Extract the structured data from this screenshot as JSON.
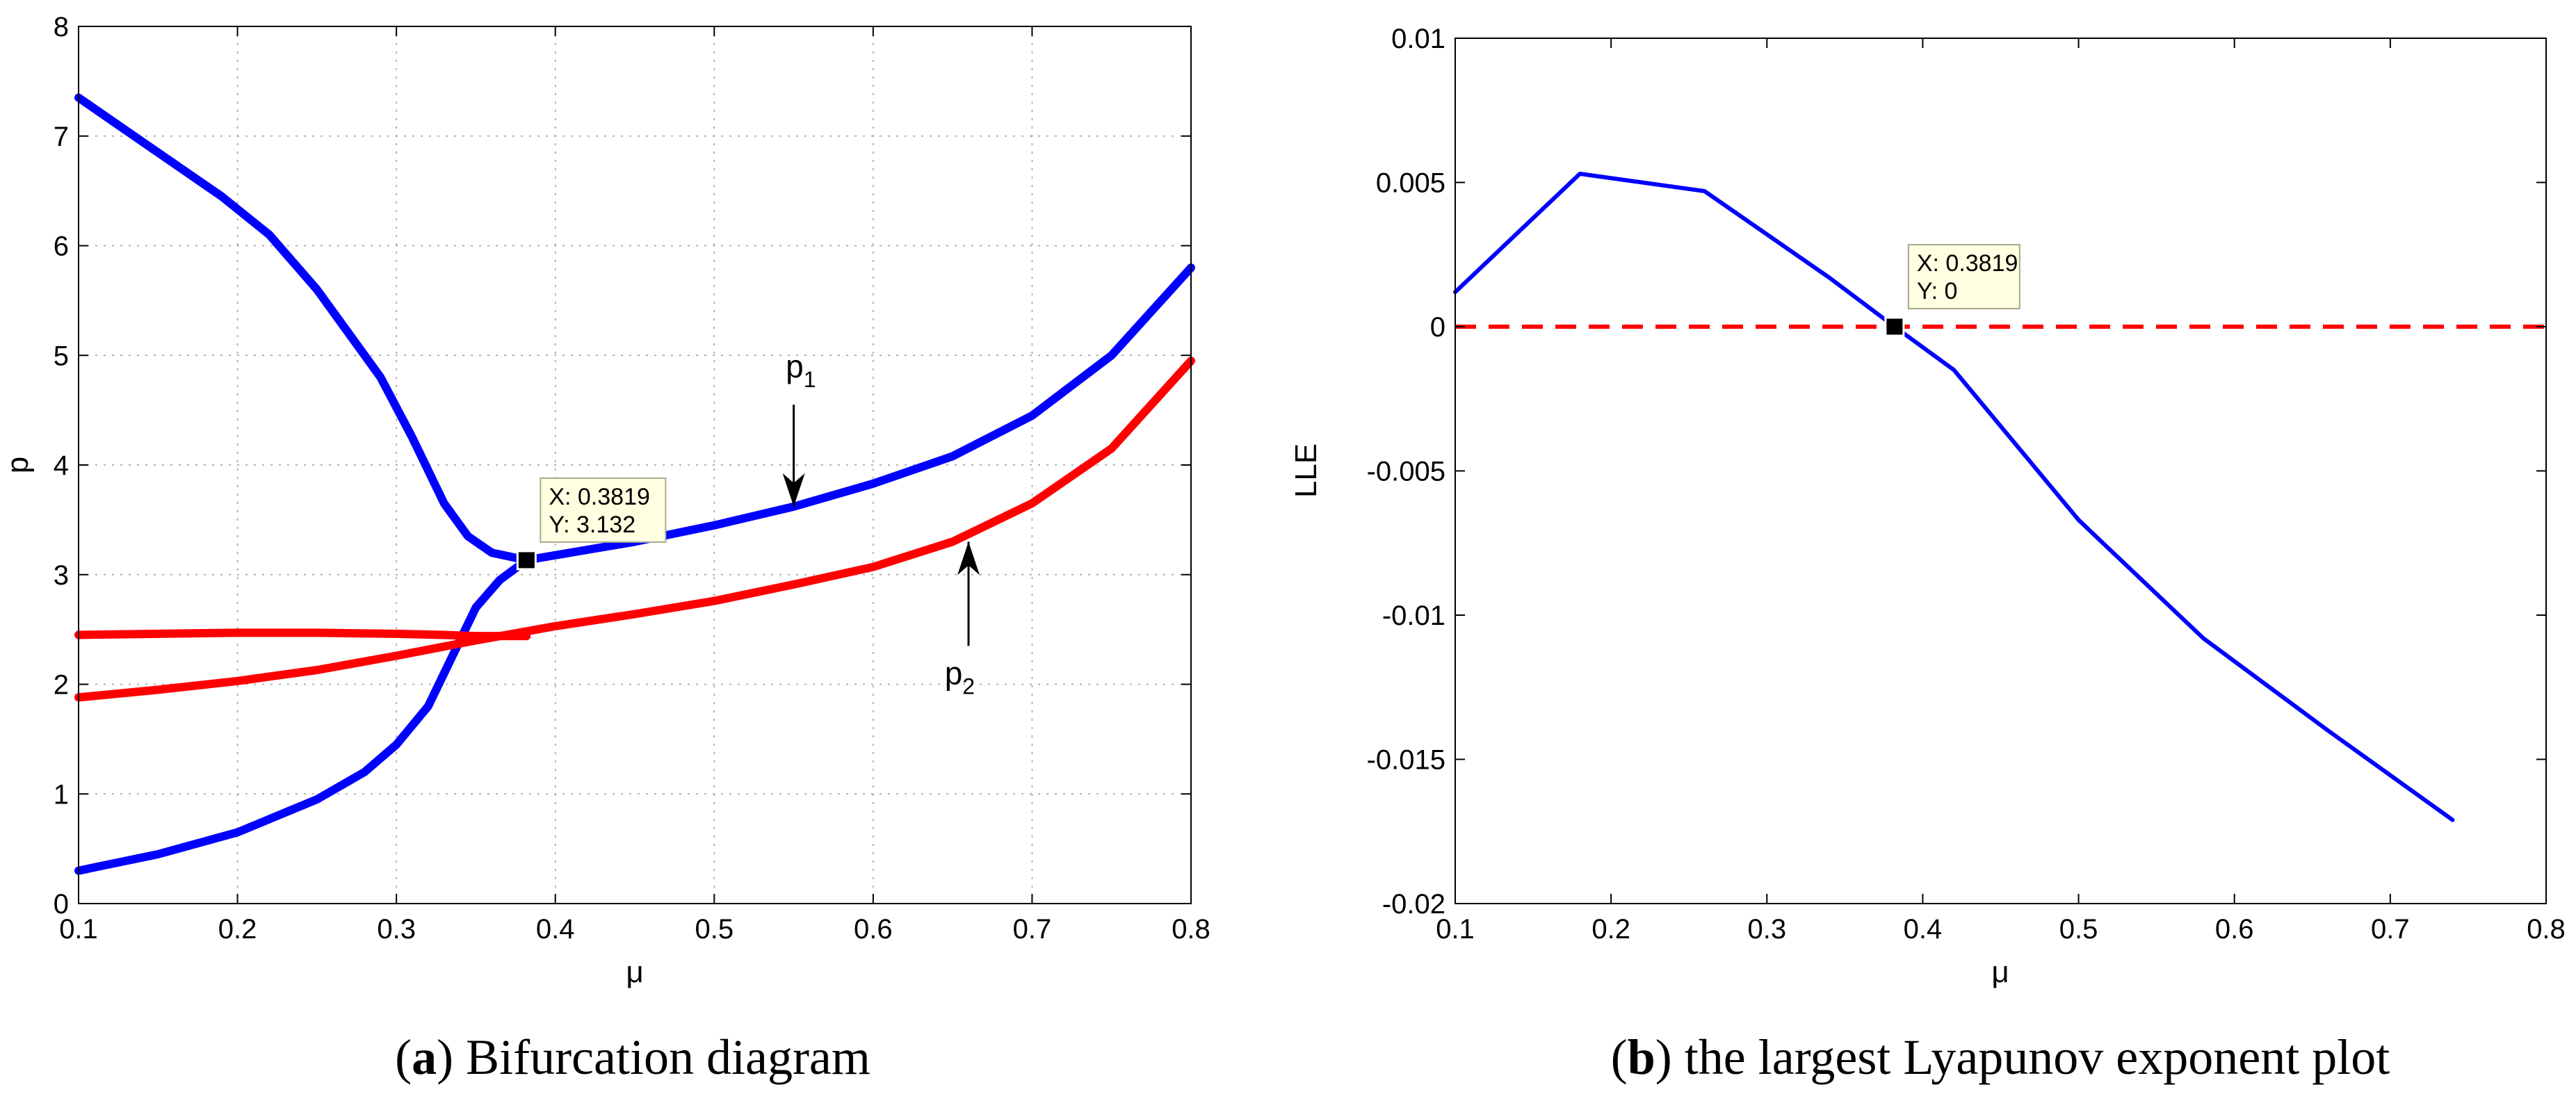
{
  "colors": {
    "blue": "#0000ff",
    "red": "#ff0000",
    "grid": "#9a9a9a",
    "tip_bg": "#ffffe1",
    "tip_border": "#a8a890"
  },
  "chart_data": [
    {
      "type": "line",
      "panel": "a",
      "caption_letter": "a",
      "caption_open": "(",
      "caption_close": ")",
      "caption_text": " Bifurcation diagram",
      "xlabel": "μ",
      "ylabel": "p",
      "xlim": [
        0.1,
        0.8
      ],
      "ylim": [
        0,
        8
      ],
      "grid": true,
      "xticks": [
        "0.1",
        "0.2",
        "0.3",
        "0.4",
        "0.5",
        "0.6",
        "0.7",
        "0.8"
      ],
      "yticks": [
        "0",
        "1",
        "2",
        "3",
        "4",
        "5",
        "6",
        "7",
        "8"
      ],
      "series": [
        {
          "name": "p1 upper branch",
          "color": "blue",
          "x": [
            0.1,
            0.13,
            0.16,
            0.19,
            0.22,
            0.25,
            0.27,
            0.29,
            0.31,
            0.33,
            0.345,
            0.36,
            0.3819
          ],
          "y": [
            7.35,
            7.05,
            6.75,
            6.45,
            6.1,
            5.6,
            5.2,
            4.8,
            4.25,
            3.65,
            3.35,
            3.2,
            3.132
          ]
        },
        {
          "name": "p1 lower branch",
          "color": "blue",
          "x": [
            0.1,
            0.15,
            0.2,
            0.25,
            0.28,
            0.3,
            0.32,
            0.335,
            0.35,
            0.365,
            0.3819
          ],
          "y": [
            0.3,
            0.45,
            0.65,
            0.95,
            1.2,
            1.45,
            1.8,
            2.25,
            2.7,
            2.95,
            3.132
          ]
        },
        {
          "name": "p1",
          "color": "blue",
          "x": [
            0.3819,
            0.45,
            0.5,
            0.55,
            0.6,
            0.65,
            0.7,
            0.75,
            0.8
          ],
          "y": [
            3.132,
            3.3,
            3.45,
            3.62,
            3.83,
            4.08,
            4.45,
            5.0,
            5.8
          ]
        },
        {
          "name": "p2 flat branch",
          "color": "red",
          "x": [
            0.1,
            0.15,
            0.2,
            0.25,
            0.3,
            0.33,
            0.35,
            0.3819
          ],
          "y": [
            2.45,
            2.46,
            2.47,
            2.47,
            2.46,
            2.45,
            2.44,
            2.44
          ]
        },
        {
          "name": "p2",
          "color": "red",
          "x": [
            0.1,
            0.15,
            0.2,
            0.25,
            0.3,
            0.35,
            0.4,
            0.45,
            0.5,
            0.55,
            0.6,
            0.65,
            0.7,
            0.75,
            0.8
          ],
          "y": [
            1.88,
            1.95,
            2.03,
            2.13,
            2.26,
            2.4,
            2.53,
            2.64,
            2.76,
            2.91,
            3.07,
            3.3,
            3.65,
            4.15,
            4.95
          ]
        }
      ],
      "datatip": {
        "x": 0.3819,
        "y": 3.132,
        "x_label": "X: 0.3819",
        "y_label": "Y: 3.132"
      },
      "annotations": [
        {
          "base": "p",
          "sub": "1",
          "text_x": 0.545,
          "text_y": 4.8,
          "arrow_from": [
            0.55,
            4.55
          ],
          "arrow_to": [
            0.55,
            3.62
          ]
        },
        {
          "base": "p",
          "sub": "2",
          "text_x": 0.645,
          "text_y": 2.0,
          "arrow_from": [
            0.66,
            2.35
          ],
          "arrow_to": [
            0.66,
            3.3
          ]
        }
      ]
    },
    {
      "type": "line",
      "panel": "b",
      "caption_letter": "b",
      "caption_open": "(",
      "caption_close": ")",
      "caption_text": " the largest Lyapunov exponent plot",
      "xlabel": "μ",
      "ylabel": "LLE",
      "xlim": [
        0.1,
        0.8
      ],
      "ylim": [
        -0.02,
        0.01
      ],
      "grid": false,
      "xticks": [
        "0.1",
        "0.2",
        "0.3",
        "0.4",
        "0.5",
        "0.6",
        "0.7",
        "0.8"
      ],
      "yticks": [
        "0.01",
        "0.005",
        "0",
        "-0.005",
        "-0.01",
        "-0.015",
        "-0.02"
      ],
      "series": [
        {
          "name": "LLE",
          "color": "blue",
          "style": "solid",
          "x": [
            0.1,
            0.18,
            0.26,
            0.34,
            0.3819,
            0.42,
            0.5,
            0.58,
            0.66,
            0.74
          ],
          "y": [
            0.0012,
            0.0053,
            0.0047,
            0.0017,
            0.0,
            -0.0015,
            -0.0067,
            -0.0108,
            -0.014,
            -0.0171
          ]
        },
        {
          "name": "zero",
          "color": "red",
          "style": "dashed",
          "x": [
            0.1,
            0.8
          ],
          "y": [
            0.0,
            0.0
          ]
        }
      ],
      "datatip": {
        "x": 0.3819,
        "y": 0.0,
        "x_label": "X: 0.3819",
        "y_label": "Y: 0"
      }
    }
  ]
}
